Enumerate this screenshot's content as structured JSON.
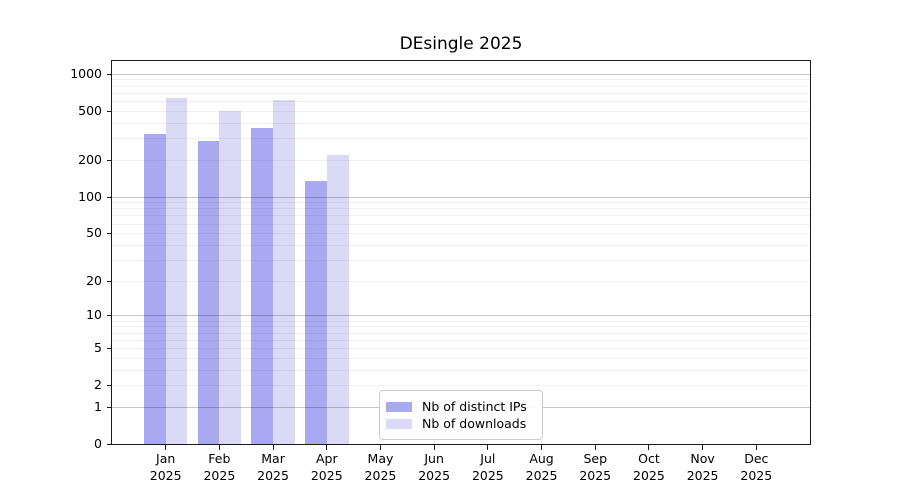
{
  "chart_data": {
    "type": "bar",
    "title": "DEsingle 2025",
    "categories": [
      "Jan 2025",
      "Feb 2025",
      "Mar 2025",
      "Apr 2025",
      "May 2025",
      "Jun 2025",
      "Jul 2025",
      "Aug 2025",
      "Sep 2025",
      "Oct 2025",
      "Nov 2025",
      "Dec 2025"
    ],
    "series": [
      {
        "name": "Nb of distinct IPs",
        "color": "#a9a9f1",
        "values": [
          325,
          285,
          365,
          135,
          null,
          null,
          null,
          null,
          null,
          null,
          null,
          null
        ]
      },
      {
        "name": "Nb of downloads",
        "color": "#dadaf7",
        "values": [
          630,
          500,
          615,
          220,
          null,
          null,
          null,
          null,
          null,
          null,
          null,
          null
        ]
      }
    ],
    "yticks": [
      0,
      1,
      2,
      5,
      10,
      20,
      50,
      100,
      200,
      500,
      1000
    ],
    "y_scale": "log10(value+1)",
    "ylim": [
      0,
      1276
    ],
    "grid": "horizontal-minor-and-major",
    "legend_position": "bottom-center"
  }
}
